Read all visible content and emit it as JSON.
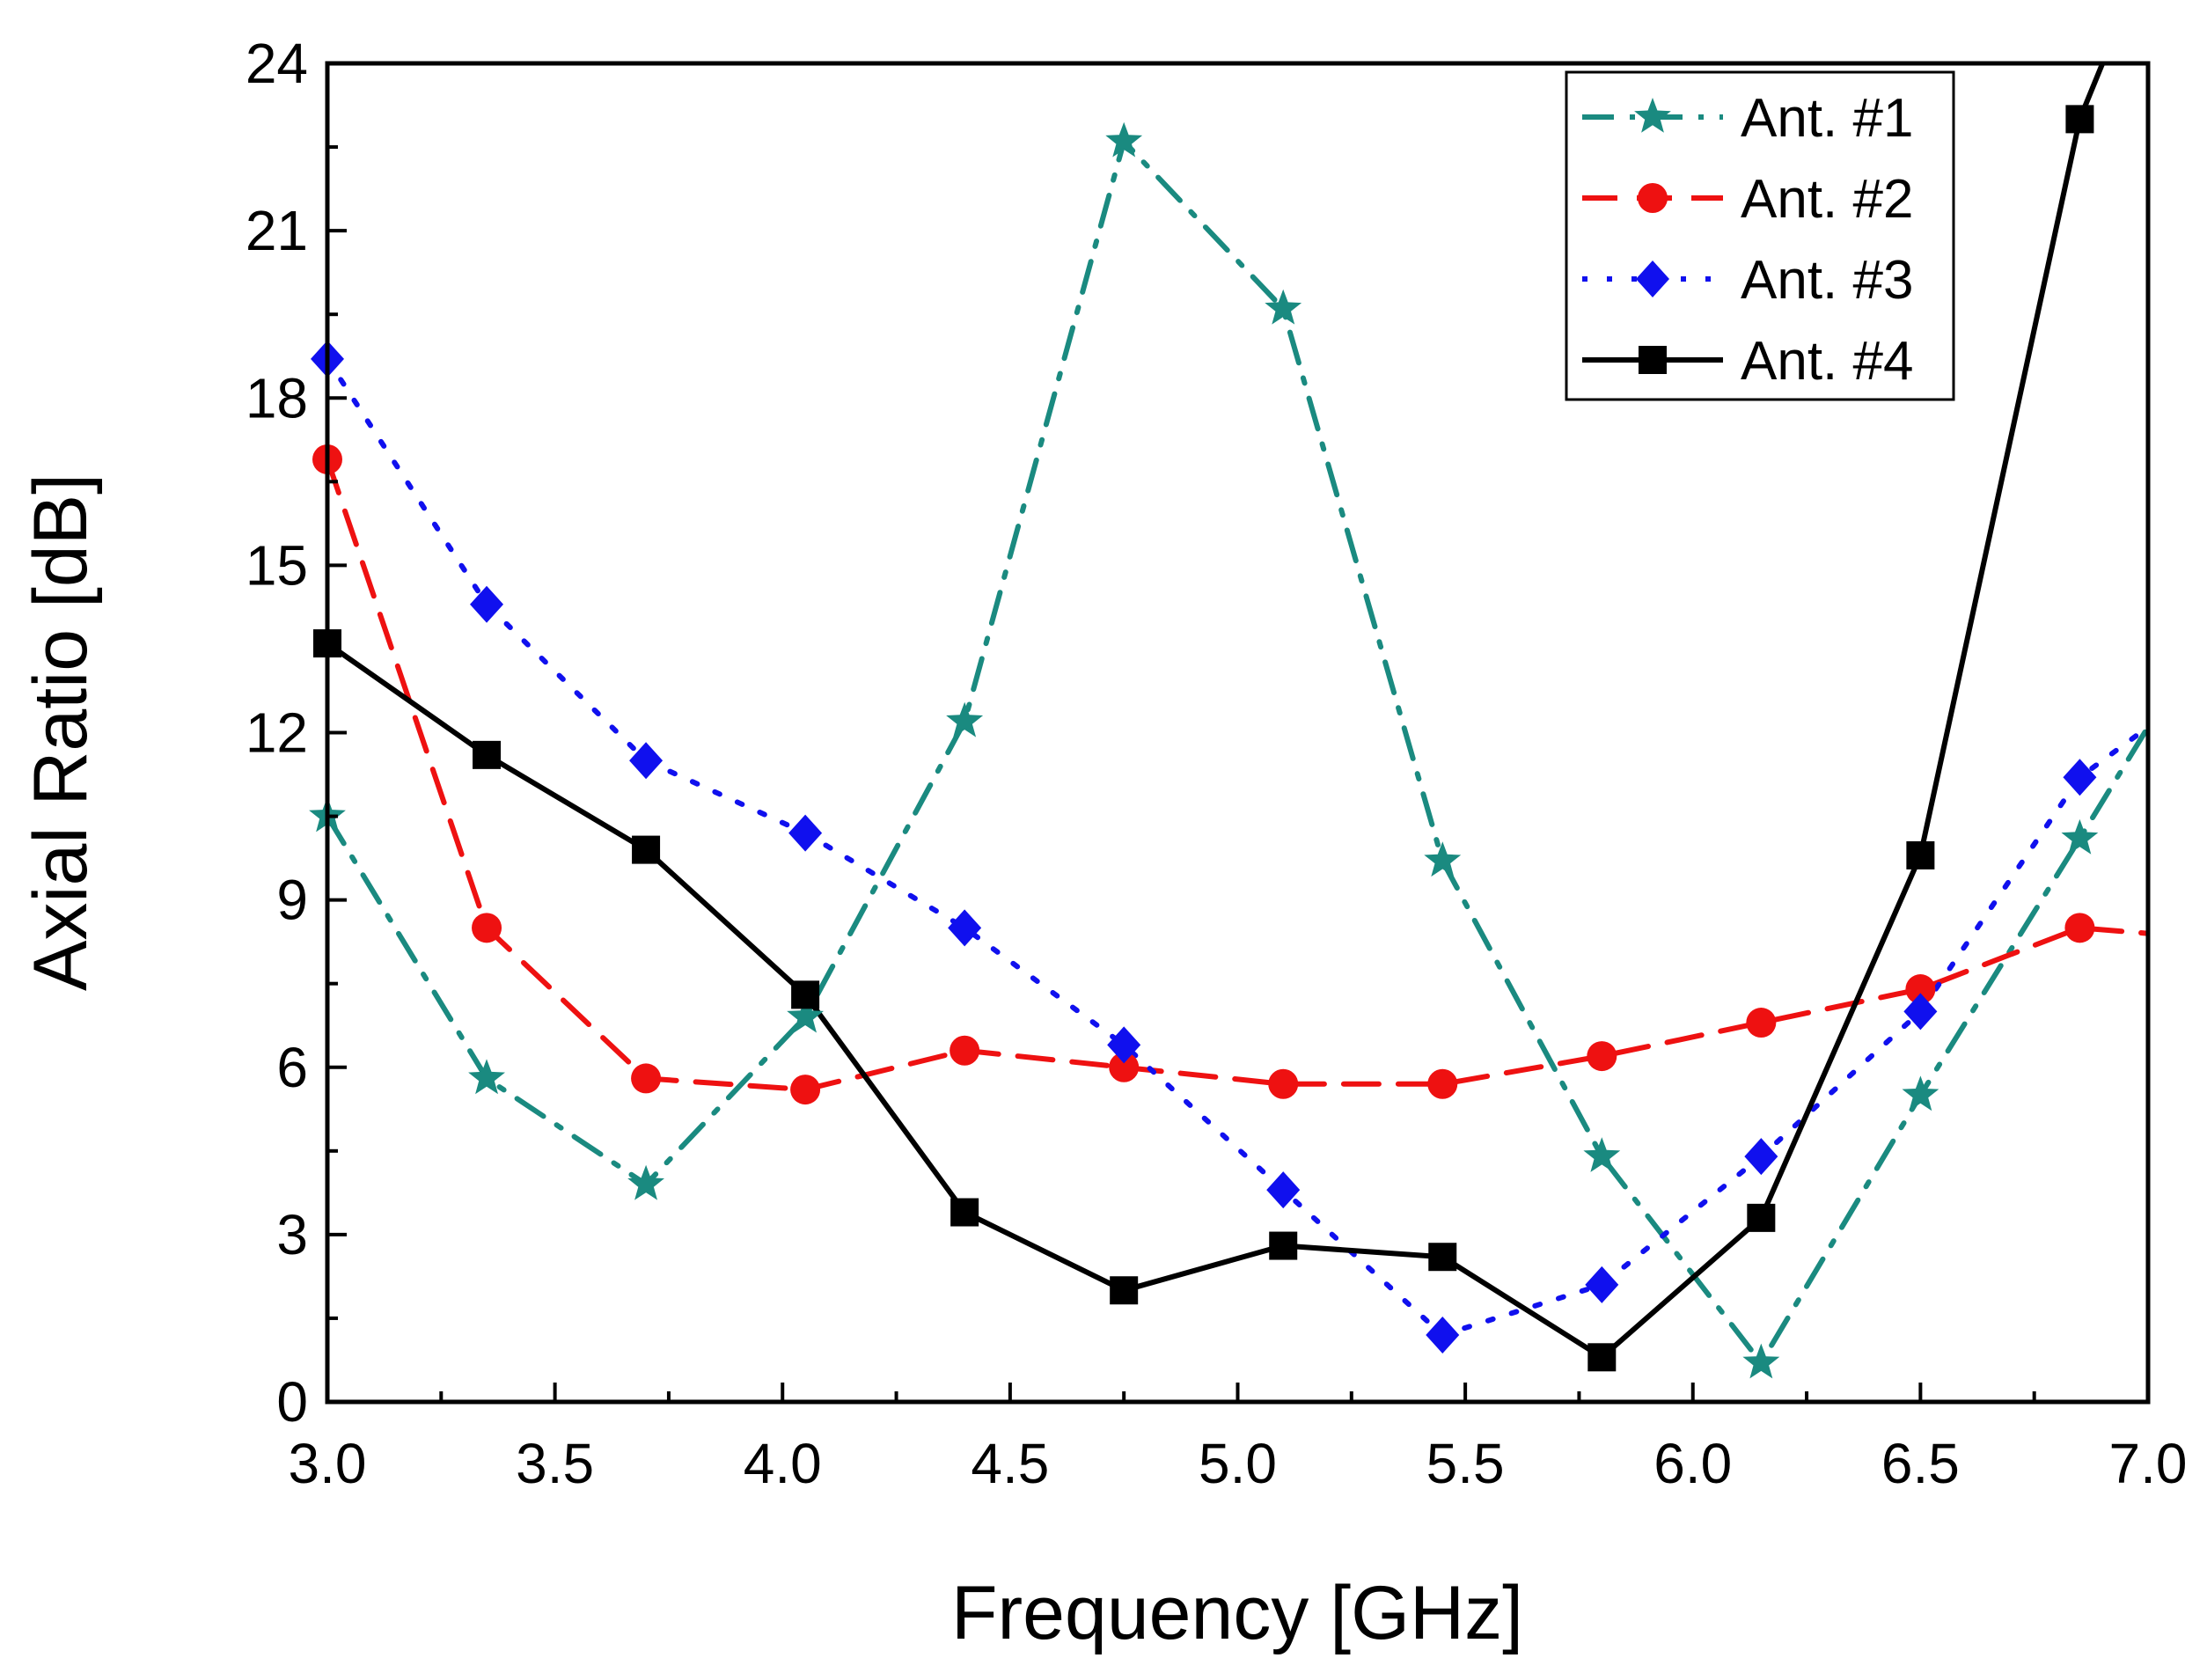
{
  "chart_data": {
    "type": "line",
    "xlabel": "Frequency [GHz]",
    "ylabel": "Axial Ratio [dB]",
    "xlim": [
      3.0,
      7.0
    ],
    "ylim": [
      0,
      24
    ],
    "xticks": [
      "3.0",
      "3.5",
      "4.0",
      "4.5",
      "5.0",
      "5.5",
      "6.0",
      "6.5",
      "7.0"
    ],
    "yticks": [
      "0",
      "3",
      "6",
      "9",
      "12",
      "15",
      "18",
      "21",
      "24"
    ],
    "grid": false,
    "legend_position": "top-right",
    "series": [
      {
        "name": "Ant. #1",
        "color": "#1a8a80",
        "dash": "dash-dot",
        "marker": "star",
        "x": [
          3.0,
          3.35,
          3.7,
          4.05,
          4.4,
          4.75,
          5.1,
          5.45,
          5.8,
          6.15,
          6.5,
          6.85,
          7.0
        ],
        "y": [
          10.5,
          5.8,
          3.9,
          6.9,
          12.2,
          22.6,
          19.6,
          9.7,
          4.4,
          0.7,
          5.5,
          10.1,
          12.1
        ]
      },
      {
        "name": "Ant. #2",
        "color": "#ee1111",
        "dash": "dash",
        "marker": "circle",
        "x": [
          3.0,
          3.35,
          3.7,
          4.05,
          4.4,
          4.75,
          5.1,
          5.45,
          5.8,
          6.15,
          6.5,
          6.85,
          7.0
        ],
        "y": [
          16.9,
          8.5,
          5.8,
          5.6,
          6.3,
          6.0,
          5.7,
          5.7,
          6.2,
          6.8,
          7.4,
          8.5,
          8.4
        ]
      },
      {
        "name": "Ant. #3",
        "color": "#1010ee",
        "dash": "dot",
        "marker": "diamond",
        "x": [
          3.0,
          3.35,
          3.7,
          4.05,
          4.4,
          4.75,
          5.1,
          5.45,
          5.8,
          6.15,
          6.5,
          6.85,
          7.0
        ],
        "y": [
          18.7,
          14.3,
          11.5,
          10.2,
          8.5,
          6.4,
          3.8,
          1.2,
          2.1,
          4.4,
          7.0,
          11.2,
          12.1
        ]
      },
      {
        "name": "Ant. #4",
        "color": "#000000",
        "dash": "solid",
        "marker": "square",
        "x": [
          3.0,
          3.35,
          3.7,
          4.05,
          4.4,
          4.75,
          5.1,
          5.45,
          5.8,
          6.15,
          6.5,
          6.85,
          6.9
        ],
        "y": [
          13.6,
          11.6,
          9.9,
          7.3,
          3.4,
          2.0,
          2.8,
          2.6,
          0.8,
          3.3,
          9.8,
          23.0,
          24.0
        ]
      }
    ]
  }
}
